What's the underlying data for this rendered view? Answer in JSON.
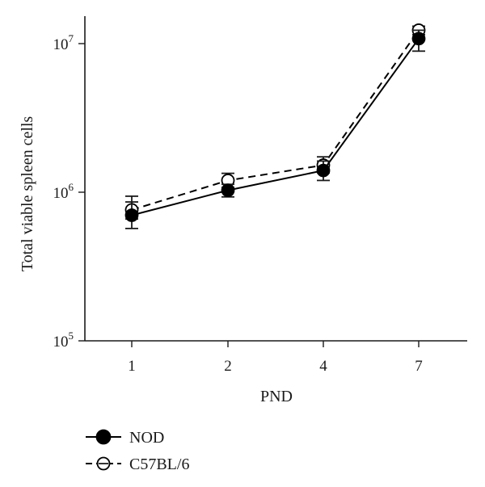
{
  "chart_data": {
    "type": "line",
    "x_scale": "categorical",
    "y_scale": "log",
    "categories": [
      "1",
      "2",
      "4",
      "7"
    ],
    "ylim": [
      100000,
      15000000
    ],
    "yticks": [
      {
        "value": 100000,
        "base": "10",
        "exp": "5"
      },
      {
        "value": 1000000,
        "base": "10",
        "exp": "6"
      },
      {
        "value": 10000000,
        "base": "10",
        "exp": "7"
      }
    ],
    "xlabel": "PND",
    "ylabel": "Total viable spleen cells",
    "grid": false,
    "legend_position": "bottom-left",
    "series": [
      {
        "name": "NOD",
        "line_style": "solid",
        "marker": "filled-circle",
        "color": "#000000",
        "values": [
          700000,
          1030000,
          1400000,
          10800000
        ],
        "err_low": [
          570000,
          930000,
          1200000,
          8900000
        ],
        "err_high": [
          860000,
          1130000,
          1620000,
          12300000
        ]
      },
      {
        "name": "C57BL/6",
        "line_style": "dashed",
        "marker": "open-circle",
        "color": "#000000",
        "values": [
          760000,
          1200000,
          1520000,
          12300000
        ],
        "err_low": [
          660000,
          1080000,
          1350000,
          11500000
        ],
        "err_high": [
          940000,
          1340000,
          1730000,
          13100000
        ]
      }
    ]
  }
}
